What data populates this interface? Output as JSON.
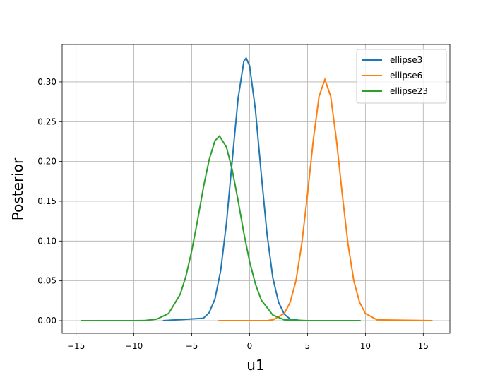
{
  "chart_data": {
    "type": "line",
    "xlabel": "u1",
    "ylabel": "Posterior",
    "xlim": [
      -16.2,
      17.3
    ],
    "ylim": [
      -0.016,
      0.347
    ],
    "xticks": [
      {
        "value": -15,
        "label": "−15"
      },
      {
        "value": -10,
        "label": "−10"
      },
      {
        "value": -5,
        "label": "−5"
      },
      0,
      5,
      10,
      15
    ],
    "yticks": [
      {
        "value": 0,
        "label": "0.00"
      },
      {
        "value": 0.05,
        "label": "0.05"
      },
      {
        "value": 0.1,
        "label": "0.10"
      },
      {
        "value": 0.15,
        "label": "0.15"
      },
      {
        "value": 0.2,
        "label": "0.20"
      },
      {
        "value": 0.25,
        "label": "0.25"
      },
      {
        "value": 0.3,
        "label": "0.30"
      }
    ],
    "grid": true,
    "legend": "upper right",
    "series": [
      {
        "name": "ellipse3",
        "color": "#1f77b4",
        "x": [
          -7.5,
          -4,
          -3.5,
          -3,
          -2.5,
          -2,
          -1.5,
          -1,
          -0.5,
          -0.3,
          0,
          0.5,
          1,
          1.5,
          2,
          2.5,
          3,
          3.5,
          4.5,
          6.5
        ],
        "values": [
          0,
          0.003,
          0.01,
          0.027,
          0.063,
          0.123,
          0.202,
          0.279,
          0.326,
          0.33,
          0.32,
          0.265,
          0.185,
          0.109,
          0.054,
          0.023,
          0.008,
          0.002,
          0,
          0
        ]
      },
      {
        "name": "ellipse6",
        "color": "#ff7f0e",
        "x": [
          -2.7,
          1.5,
          2,
          3,
          3.5,
          4,
          4.5,
          5,
          5.5,
          6,
          6.5,
          7,
          7.5,
          8,
          8.5,
          9,
          9.5,
          10,
          11,
          15.8
        ],
        "values": [
          0,
          0,
          0.001,
          0.009,
          0.023,
          0.05,
          0.096,
          0.159,
          0.227,
          0.282,
          0.303,
          0.282,
          0.227,
          0.159,
          0.096,
          0.05,
          0.023,
          0.009,
          0.001,
          0
        ]
      },
      {
        "name": "ellipse23",
        "color": "#2ca02c",
        "x": [
          -14.6,
          -10,
          -9,
          -8,
          -7,
          -6,
          -5.5,
          -5,
          -4.5,
          -4,
          -3.5,
          -3,
          -2.6,
          -2,
          -1.5,
          -1,
          -0.5,
          0,
          0.5,
          1,
          2,
          3,
          5,
          9.6
        ],
        "values": [
          0,
          0,
          0.0002,
          0.002,
          0.009,
          0.033,
          0.056,
          0.088,
          0.126,
          0.167,
          0.202,
          0.226,
          0.232,
          0.218,
          0.189,
          0.151,
          0.11,
          0.074,
          0.046,
          0.026,
          0.007,
          0.001,
          0,
          0
        ]
      }
    ]
  }
}
